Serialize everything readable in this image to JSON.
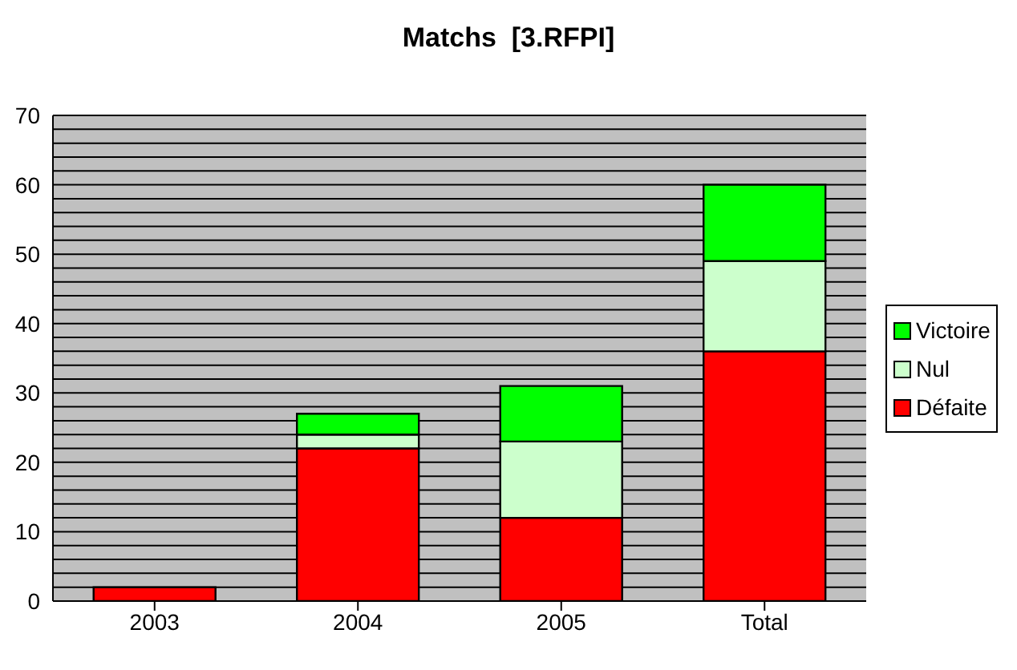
{
  "chart_data": {
    "type": "bar",
    "title": "Matchs  [3.RFPI]",
    "categories": [
      "2003",
      "2004",
      "2005",
      "Total"
    ],
    "stacked": true,
    "series": [
      {
        "name": "Défaite",
        "color": "#ff0000",
        "values": [
          2,
          22,
          12,
          36
        ]
      },
      {
        "name": "Nul",
        "color": "#ccffcc",
        "values": [
          0,
          2,
          11,
          13
        ]
      },
      {
        "name": "Victoire",
        "color": "#00ff00",
        "values": [
          0,
          3,
          8,
          11
        ]
      }
    ],
    "ylim": [
      0,
      70
    ],
    "yticks": [
      0,
      {
        "value": 2,
        "label": null
      },
      {
        "value": 4,
        "label": null
      },
      {
        "value": 6,
        "label": null
      },
      {
        "value": 8,
        "label": null
      },
      10,
      {
        "value": 12,
        "label": null
      },
      {
        "value": 14,
        "label": null
      },
      {
        "value": 16,
        "label": null
      },
      {
        "value": 18,
        "label": null
      },
      20,
      {
        "value": 22,
        "label": null
      },
      {
        "value": 24,
        "label": null
      },
      {
        "value": 26,
        "label": null
      },
      {
        "value": 28,
        "label": null
      },
      30,
      {
        "value": 32,
        "label": null
      },
      {
        "value": 34,
        "label": null
      },
      {
        "value": 36,
        "label": null
      },
      {
        "value": 38,
        "label": null
      },
      40,
      {
        "value": 42,
        "label": null
      },
      {
        "value": 44,
        "label": null
      },
      {
        "value": 46,
        "label": null
      },
      {
        "value": 48,
        "label": null
      },
      50,
      {
        "value": 52,
        "label": null
      },
      {
        "value": 54,
        "label": null
      },
      {
        "value": 56,
        "label": null
      },
      {
        "value": 58,
        "label": null
      },
      60,
      {
        "value": 62,
        "label": null
      },
      {
        "value": 64,
        "label": null
      },
      {
        "value": 66,
        "label": null
      },
      {
        "value": 68,
        "label": null
      },
      70
    ],
    "grid": "y",
    "legend": "right"
  }
}
